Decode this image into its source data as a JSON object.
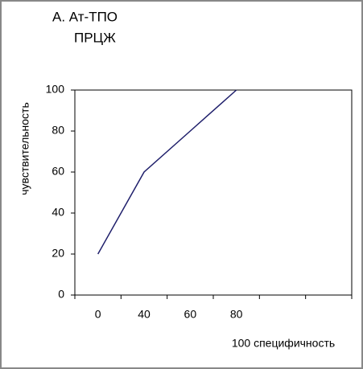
{
  "chart_data": {
    "type": "line",
    "title": "А. Ат-ТПО",
    "subtitle": "ПРЦЖ",
    "y_label": "чувствительность",
    "x_label": "100 специфичность",
    "categories": [
      "0",
      "40",
      "60",
      "80",
      null,
      null
    ],
    "values": [
      20,
      60,
      80,
      100,
      null,
      null
    ],
    "color": "#1f1f6b",
    "ylim": [
      0,
      100
    ],
    "yticks": [
      0,
      20,
      40,
      60,
      80,
      100
    ],
    "grid": false
  }
}
